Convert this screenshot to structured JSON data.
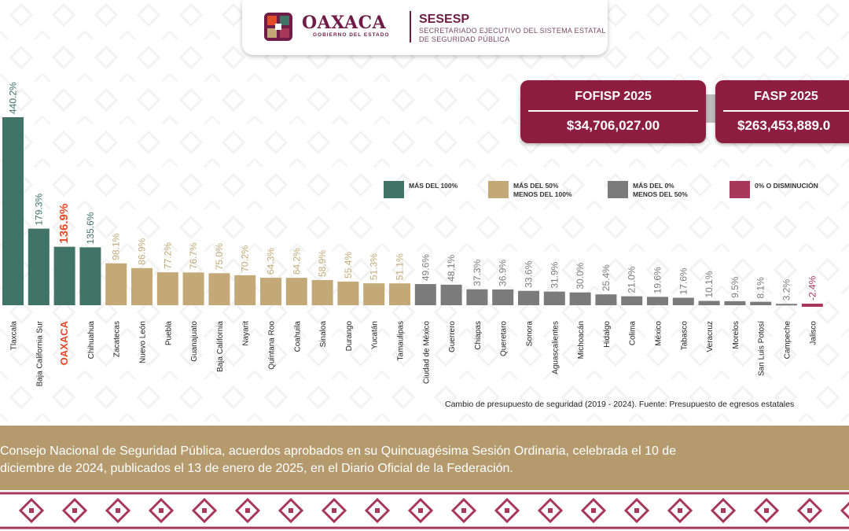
{
  "header": {
    "brand": "OAXACA",
    "brand_sub": "GOBIERNO DEL ESTADO",
    "org": "SESESP",
    "org_sub": "SECRETARIADO EJECUTIVO DEL SISTEMA ESTATAL DE SEGURIDAD PÚBLICA"
  },
  "funds": [
    {
      "title": "FOFISP 2025",
      "amount": "$34,706,027.00"
    },
    {
      "title": "FASP 2025",
      "amount": "$263,453,889.0"
    }
  ],
  "legend": [
    {
      "label": "MÁS DEL 100%",
      "color": "#3f7466"
    },
    {
      "label": "MÁS DEL 50%\nMENOS DEL 100%",
      "color": "#c3a978"
    },
    {
      "label": "MÁS DEL 0%\nMENOS DEL 50%",
      "color": "#7b7b7b"
    },
    {
      "label": "0% O DISMINUCIÓN",
      "color": "#a8385a"
    }
  ],
  "chart_data": {
    "type": "bar",
    "categories": [
      "Tlaxcala",
      "Baja California Sur",
      "OAXACA",
      "Chihuahua",
      "Zacatecas",
      "Nuevo León",
      "Puebla",
      "Guanajuato",
      "Baja California",
      "Nayarit",
      "Quintana Roo",
      "Coahuila",
      "Sinaloa",
      "Durango",
      "Yucatán",
      "Tamaulipas",
      "Ciudad de México",
      "Guerrero",
      "Chiapas",
      "Queretaro",
      "Sonora",
      "Aguascalientes",
      "Michoacán",
      "Hidalgo",
      "Colima",
      "México",
      "Tabasco",
      "Veracruz",
      "Morelos",
      "San Luis Potosí",
      "Campeche",
      "Jalisco"
    ],
    "values": [
      440.2,
      179.3,
      136.9,
      135.6,
      98.1,
      86.9,
      77.2,
      76.7,
      75.0,
      70.2,
      64.3,
      64.2,
      58.9,
      55.4,
      51.3,
      51.1,
      49.6,
      48.1,
      37.3,
      36.9,
      33.6,
      31.9,
      30.0,
      25.4,
      21.0,
      19.6,
      17.6,
      10.1,
      9.5,
      8.1,
      3.2,
      -2.4
    ],
    "value_labels": [
      "440.2%",
      "179.3%",
      "136.9%",
      "135.6%",
      "98.1%",
      "86.9%",
      "77.2%",
      "76.7%",
      "75.0%",
      "70.2%",
      "64.3%",
      "64.2%",
      "58.9%",
      "55.4%",
      "51.3%",
      "51.1%",
      "49.6%",
      "48.1%",
      "37.3%",
      "36.9%",
      "33.6%",
      "31.9%",
      "30.0%",
      "25.4%",
      "21.0%",
      "19.6%",
      "17.6%",
      "10.1%",
      "9.5%",
      "8.1%",
      "3.2%",
      "-2.4%"
    ],
    "highlight": "OAXACA",
    "colors": {
      "above100": "#3f7466",
      "50to100": "#c3a978",
      "0to50": "#7b7b7b",
      "negative": "#a8385a",
      "highlight_text": "#e24a2a"
    },
    "caption": "Cambio de presupuesto de seguridad (2019 - 2024). Fuente: Presupuesto de egresos estatales"
  },
  "note": "Consejo Nacional de Seguridad Pública,  acuerdos aprobados en su Quincuagésima Sesión Ordinaria, celebrada el 10 de\ndiciembre de 2024, publicados el 13 de enero de 2025, en el Diario Oficial de la Federación."
}
